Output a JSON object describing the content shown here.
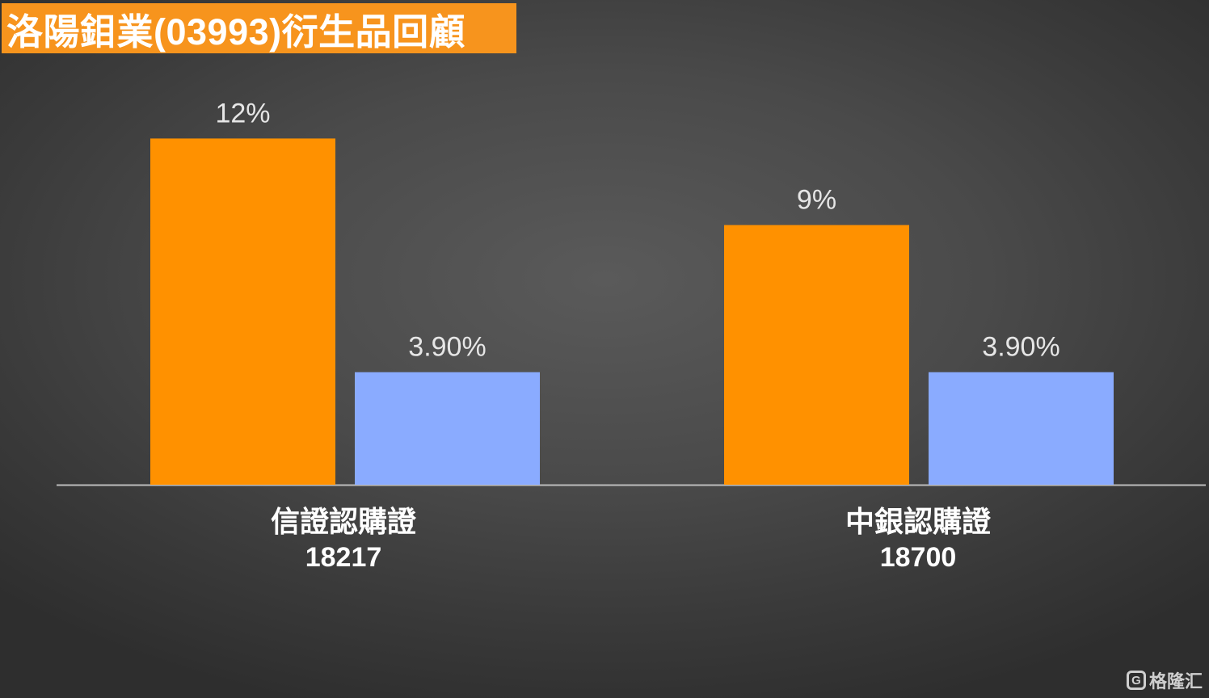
{
  "title": "洛陽鉬業(03993)衍生品回顧",
  "chart_data": {
    "type": "bar",
    "categories": [
      {
        "name": "信證認購證",
        "code": "18217"
      },
      {
        "name": "中銀認購證",
        "code": "18700"
      }
    ],
    "series": [
      {
        "values": [
          12,
          9
        ],
        "labels": [
          "12%",
          "9%"
        ],
        "color": "#ff9100"
      },
      {
        "values": [
          3.9,
          3.9
        ],
        "labels": [
          "3.90%",
          "3.90%"
        ],
        "color": "#8aabff"
      }
    ],
    "ylim": [
      0,
      14
    ],
    "grid": false,
    "legend": "none",
    "data_label_color": "#e6e6e6",
    "axis_color": "#bdbdbd"
  },
  "watermark": {
    "icon": "G",
    "text": "格隆汇"
  }
}
